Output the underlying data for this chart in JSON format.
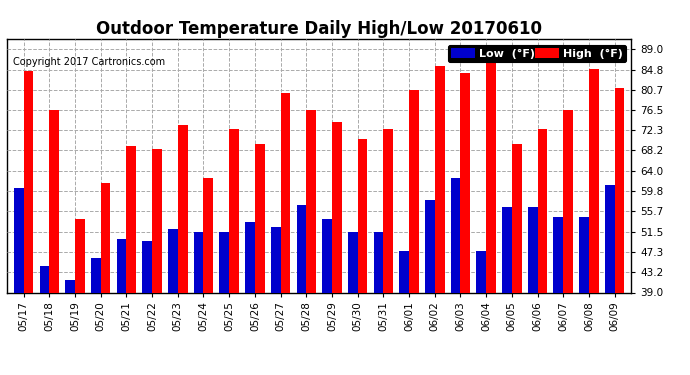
{
  "title": "Outdoor Temperature Daily High/Low 20170610",
  "copyright": "Copyright 2017 Cartronics.com",
  "dates": [
    "05/17",
    "05/18",
    "05/19",
    "05/20",
    "05/21",
    "05/22",
    "05/23",
    "05/24",
    "05/25",
    "05/26",
    "05/27",
    "05/28",
    "05/29",
    "05/30",
    "05/31",
    "06/01",
    "06/02",
    "06/03",
    "06/04",
    "06/05",
    "06/06",
    "06/07",
    "06/08",
    "06/09"
  ],
  "highs": [
    84.5,
    76.5,
    54.0,
    61.5,
    69.0,
    68.5,
    73.5,
    62.5,
    72.5,
    69.5,
    80.0,
    76.5,
    74.0,
    70.5,
    72.5,
    80.5,
    85.5,
    84.0,
    89.5,
    69.5,
    72.5,
    76.5,
    85.0,
    81.0
  ],
  "lows": [
    60.5,
    44.5,
    41.5,
    46.0,
    50.0,
    49.5,
    52.0,
    51.5,
    51.5,
    53.5,
    52.5,
    57.0,
    54.0,
    51.5,
    51.5,
    47.5,
    58.0,
    62.5,
    47.5,
    56.5,
    56.5,
    54.5,
    54.5,
    61.0
  ],
  "high_color": "#ff0000",
  "low_color": "#0000cc",
  "bg_color": "#ffffff",
  "grid_color": "#aaaaaa",
  "ybase": 39.0,
  "ylim_min": 39.0,
  "ylim_max": 91.0,
  "yticks": [
    39.0,
    43.2,
    47.3,
    51.5,
    55.7,
    59.8,
    64.0,
    68.2,
    72.3,
    76.5,
    80.7,
    84.8,
    89.0
  ],
  "title_fontsize": 12,
  "copyright_fontsize": 7,
  "bar_width": 0.38,
  "legend_low_label": "Low  (°F)",
  "legend_high_label": "High  (°F)"
}
